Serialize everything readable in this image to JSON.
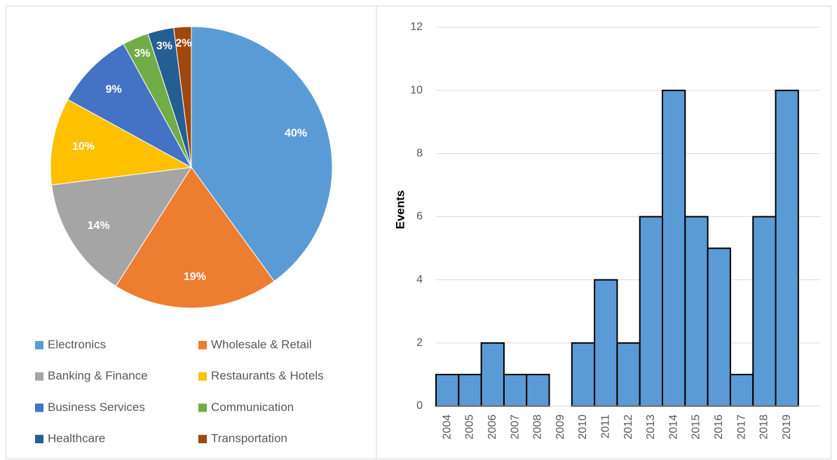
{
  "chart_data": [
    {
      "type": "pie",
      "categories": [
        "Electronics",
        "Wholesale & Retail",
        "Banking & Finance",
        "Restaurants & Hotels",
        "Business Services",
        "Communication",
        "Healthcare",
        "Transportation"
      ],
      "values": [
        40,
        19,
        14,
        10,
        9,
        3,
        3,
        2
      ],
      "value_labels": [
        "40%",
        "19%",
        "14%",
        "10%",
        "9%",
        "3%",
        "3%",
        "2%"
      ],
      "colors": [
        "#5b9bd5",
        "#ed7d31",
        "#a5a5a5",
        "#ffc000",
        "#4472c4",
        "#70ad47",
        "#255e91",
        "#9e480e"
      ],
      "legend": "bottom"
    },
    {
      "type": "bar",
      "ylabel": "Events",
      "categories": [
        "2004",
        "2005",
        "2006",
        "2007",
        "2008",
        "2009",
        "2010",
        "2011",
        "2012",
        "2013",
        "2014",
        "2015",
        "2016",
        "2017",
        "2018",
        "2019"
      ],
      "values": [
        1,
        1,
        2,
        1,
        1,
        0,
        2,
        4,
        2,
        6,
        10,
        6,
        5,
        1,
        6,
        10
      ],
      "color": "#5b9bd5",
      "ylim": [
        0,
        12
      ],
      "yticks": [
        0,
        2,
        4,
        6,
        8,
        10,
        12
      ],
      "grid": true
    }
  ]
}
